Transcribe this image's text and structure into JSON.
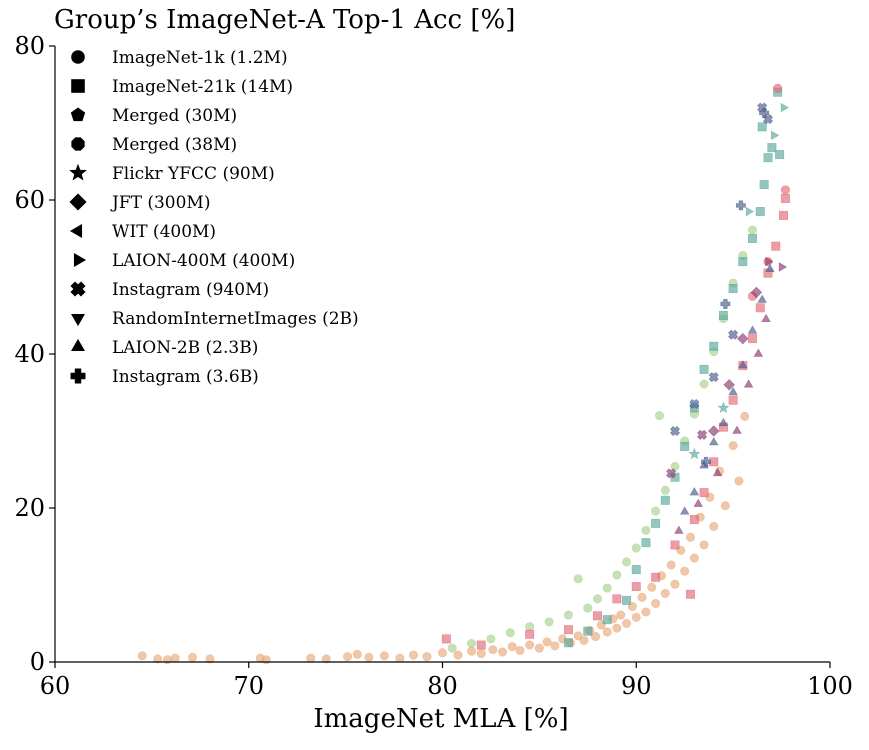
{
  "chart_data": {
    "type": "scatter",
    "title": "Group’s ImageNet-A Top-1 Acc [%]",
    "xlabel": "ImageNet MLA [%]",
    "ylabel": "",
    "xlim": [
      60,
      100
    ],
    "ylim": [
      0,
      80
    ],
    "xticks": [
      "60",
      "70",
      "80",
      "90",
      "100"
    ],
    "yticks": [
      "0",
      "20",
      "40",
      "60",
      "80"
    ],
    "grid": false,
    "legend_position": "top-left",
    "legend": [
      {
        "label": "ImageNet-1k (1.2M)",
        "marker": "circle"
      },
      {
        "label": "ImageNet-21k (14M)",
        "marker": "square"
      },
      {
        "label": "Merged (30M)",
        "marker": "pentagon"
      },
      {
        "label": "Merged (38M)",
        "marker": "octagon"
      },
      {
        "label": "Flickr YFCC (90M)",
        "marker": "star"
      },
      {
        "label": "JFT (300M)",
        "marker": "diamond"
      },
      {
        "label": "WIT (400M)",
        "marker": "triangle-left"
      },
      {
        "label": "LAION-400M (400M)",
        "marker": "triangle-right"
      },
      {
        "label": "Instagram (940M)",
        "marker": "x-filled"
      },
      {
        "label": "RandomInternetImages (2B)",
        "marker": "triangle-down"
      },
      {
        "label": "LAION-2B (2.3B)",
        "marker": "triangle-up"
      },
      {
        "label": "Instagram (3.6B)",
        "marker": "plus-filled"
      }
    ],
    "color_groups": [
      "#e8a97a",
      "#a9d18e",
      "#5aa89a",
      "#e06a74",
      "#8b3a6e",
      "#4a5a8a"
    ],
    "series": [
      {
        "marker": "circle",
        "color": "#e8a97a",
        "points": [
          [
            64.5,
            0.8
          ],
          [
            65.3,
            0.4
          ],
          [
            65.8,
            0.3
          ],
          [
            66.2,
            0.5
          ],
          [
            67.1,
            0.6
          ],
          [
            68.0,
            0.4
          ],
          [
            70.6,
            0.5
          ],
          [
            70.9,
            0.3
          ],
          [
            73.2,
            0.5
          ],
          [
            74.0,
            0.4
          ],
          [
            75.1,
            0.7
          ],
          [
            75.6,
            1.0
          ],
          [
            76.2,
            0.6
          ],
          [
            77.0,
            0.8
          ],
          [
            77.8,
            0.5
          ],
          [
            78.5,
            0.9
          ],
          [
            79.2,
            0.7
          ],
          [
            80.0,
            1.2
          ],
          [
            80.8,
            0.9
          ],
          [
            81.5,
            1.4
          ],
          [
            82.0,
            1.1
          ],
          [
            82.6,
            1.6
          ],
          [
            83.1,
            1.3
          ],
          [
            83.6,
            2.0
          ],
          [
            84.0,
            1.5
          ],
          [
            84.5,
            2.2
          ],
          [
            85.0,
            1.8
          ],
          [
            85.4,
            2.6
          ],
          [
            85.8,
            2.1
          ],
          [
            86.2,
            3.0
          ],
          [
            86.6,
            2.5
          ],
          [
            87.0,
            3.4
          ],
          [
            87.3,
            2.8
          ],
          [
            87.6,
            4.1
          ],
          [
            87.9,
            3.3
          ],
          [
            88.2,
            4.8
          ],
          [
            88.5,
            3.9
          ],
          [
            88.8,
            5.6
          ],
          [
            89.0,
            4.4
          ],
          [
            89.2,
            6.1
          ],
          [
            89.5,
            5.0
          ],
          [
            89.8,
            7.2
          ],
          [
            90.0,
            5.8
          ],
          [
            90.3,
            8.4
          ],
          [
            90.5,
            6.5
          ],
          [
            90.8,
            9.7
          ],
          [
            91.0,
            7.6
          ],
          [
            91.3,
            11.2
          ],
          [
            91.5,
            8.9
          ],
          [
            91.8,
            12.6
          ],
          [
            92.0,
            10.1
          ],
          [
            92.3,
            14.5
          ],
          [
            92.5,
            11.8
          ],
          [
            92.8,
            16.2
          ],
          [
            93.0,
            13.5
          ],
          [
            93.3,
            18.8
          ],
          [
            93.5,
            15.2
          ],
          [
            93.8,
            21.4
          ],
          [
            94.0,
            17.6
          ],
          [
            94.3,
            24.8
          ],
          [
            94.6,
            20.3
          ],
          [
            95.0,
            28.1
          ],
          [
            95.3,
            23.5
          ],
          [
            95.6,
            31.9
          ]
        ]
      },
      {
        "marker": "circle",
        "color": "#a9d18e",
        "points": [
          [
            80.5,
            1.8
          ],
          [
            81.5,
            2.4
          ],
          [
            82.5,
            3.0
          ],
          [
            83.5,
            3.8
          ],
          [
            84.5,
            4.6
          ],
          [
            85.5,
            5.2
          ],
          [
            86.5,
            6.1
          ],
          [
            87.0,
            10.8
          ],
          [
            87.5,
            7.0
          ],
          [
            88.0,
            8.2
          ],
          [
            88.5,
            9.6
          ],
          [
            89.0,
            11.3
          ],
          [
            89.5,
            13.0
          ],
          [
            90.0,
            14.8
          ],
          [
            90.5,
            17.1
          ],
          [
            91.0,
            19.6
          ],
          [
            91.2,
            32.0
          ],
          [
            91.5,
            22.3
          ],
          [
            92.0,
            25.4
          ],
          [
            92.5,
            28.7
          ],
          [
            93.0,
            32.2
          ],
          [
            93.5,
            36.1
          ],
          [
            94.0,
            40.3
          ],
          [
            94.5,
            44.6
          ],
          [
            95.0,
            49.2
          ],
          [
            95.5,
            52.8
          ],
          [
            96.0,
            56.1
          ]
        ]
      },
      {
        "marker": "square",
        "color": "#5aa89a",
        "points": [
          [
            86.5,
            2.5
          ],
          [
            87.5,
            4.0
          ],
          [
            88.5,
            5.5
          ],
          [
            89.5,
            8.0
          ],
          [
            90.0,
            12.0
          ],
          [
            90.5,
            15.5
          ],
          [
            91.0,
            18.0
          ],
          [
            91.5,
            21.0
          ],
          [
            92.0,
            24.0
          ],
          [
            92.5,
            28.0
          ],
          [
            93.0,
            33.0
          ],
          [
            93.5,
            38.0
          ],
          [
            94.0,
            41.0
          ],
          [
            94.5,
            45.0
          ],
          [
            95.0,
            48.5
          ],
          [
            95.5,
            52.0
          ],
          [
            96.0,
            55.0
          ],
          [
            96.4,
            58.5
          ],
          [
            96.6,
            62.0
          ],
          [
            96.8,
            65.5
          ],
          [
            97.0,
            66.8
          ],
          [
            96.5,
            69.5
          ],
          [
            97.3,
            74.0
          ],
          [
            97.4,
            65.9
          ]
        ]
      },
      {
        "marker": "square",
        "color": "#e06a74",
        "points": [
          [
            80.2,
            3.0
          ],
          [
            82.0,
            2.2
          ],
          [
            84.5,
            3.6
          ],
          [
            86.5,
            4.2
          ],
          [
            88.0,
            6.0
          ],
          [
            89.0,
            8.2
          ],
          [
            90.0,
            9.8
          ],
          [
            91.0,
            11.0
          ],
          [
            92.0,
            15.2
          ],
          [
            92.8,
            8.8
          ],
          [
            93.0,
            18.5
          ],
          [
            93.5,
            22.0
          ],
          [
            94.0,
            26.0
          ],
          [
            94.5,
            30.5
          ],
          [
            95.0,
            34.0
          ],
          [
            95.5,
            38.5
          ],
          [
            96.0,
            42.0
          ],
          [
            96.4,
            46.0
          ],
          [
            96.8,
            50.5
          ],
          [
            97.2,
            54.0
          ],
          [
            97.6,
            58.0
          ],
          [
            97.7,
            60.2
          ]
        ]
      },
      {
        "marker": "octagon",
        "color": "#e06a74",
        "points": [
          [
            97.3,
            74.5
          ],
          [
            97.7,
            61.3
          ],
          [
            96.8,
            52.0
          ],
          [
            96.0,
            47.5
          ]
        ]
      },
      {
        "marker": "triangle-up",
        "color": "#4a5a8a",
        "points": [
          [
            92.5,
            19.5
          ],
          [
            93.0,
            22.0
          ],
          [
            93.5,
            25.5
          ],
          [
            94.0,
            28.5
          ],
          [
            94.5,
            31.0
          ],
          [
            95.0,
            35.0
          ],
          [
            95.5,
            38.5
          ],
          [
            96.0,
            43.0
          ],
          [
            96.5,
            47.0
          ],
          [
            96.9,
            51.0
          ]
        ]
      },
      {
        "marker": "triangle-up",
        "color": "#8b3a6e",
        "points": [
          [
            92.2,
            17.0
          ],
          [
            93.2,
            20.5
          ],
          [
            94.2,
            24.5
          ],
          [
            95.2,
            30.0
          ],
          [
            95.8,
            36.0
          ],
          [
            96.3,
            40.0
          ],
          [
            96.7,
            44.5
          ]
        ]
      },
      {
        "marker": "triangle-right",
        "color": "#5aa89a",
        "points": [
          [
            95.8,
            58.5
          ],
          [
            97.1,
            68.4
          ],
          [
            97.6,
            72.0
          ]
        ]
      },
      {
        "marker": "triangle-right",
        "color": "#8b3a6e",
        "points": [
          [
            96.8,
            52.0
          ],
          [
            97.5,
            51.3
          ]
        ]
      },
      {
        "marker": "diamond",
        "color": "#8b3a6e",
        "points": [
          [
            94.0,
            30.0
          ],
          [
            94.8,
            36.0
          ],
          [
            95.5,
            42.0
          ],
          [
            96.2,
            48.0
          ]
        ]
      },
      {
        "marker": "x-filled",
        "color": "#4a5a8a",
        "points": [
          [
            92.0,
            30.0
          ],
          [
            93.0,
            33.5
          ],
          [
            94.0,
            37.0
          ],
          [
            95.0,
            42.5
          ],
          [
            96.5,
            72.0
          ],
          [
            96.8,
            70.5
          ]
        ]
      },
      {
        "marker": "x-filled",
        "color": "#8b3a6e",
        "points": [
          [
            91.8,
            24.5
          ],
          [
            93.4,
            29.5
          ]
        ]
      },
      {
        "marker": "plus-filled",
        "color": "#4a5a8a",
        "points": [
          [
            93.6,
            26.0
          ],
          [
            94.6,
            46.5
          ],
          [
            95.4,
            59.3
          ],
          [
            96.6,
            71.3
          ]
        ]
      },
      {
        "marker": "star",
        "color": "#5aa89a",
        "points": [
          [
            93.0,
            27.0
          ],
          [
            94.5,
            33.0
          ]
        ]
      }
    ]
  }
}
